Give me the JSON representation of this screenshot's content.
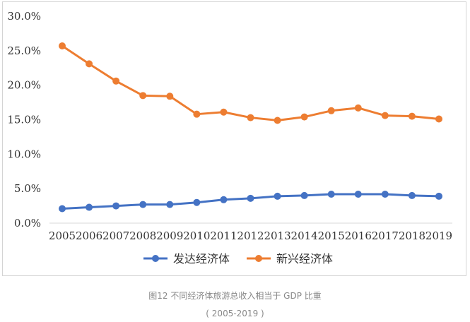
{
  "chart_data": {
    "type": "line",
    "categories": [
      "2005",
      "2006",
      "2007",
      "2008",
      "2009",
      "2010",
      "2011",
      "2012",
      "2013",
      "2014",
      "2015",
      "2016",
      "2017",
      "2018",
      "2019"
    ],
    "series": [
      {
        "name": "发达经济体",
        "color": "#4472c4",
        "values": [
          2.1,
          2.3,
          2.5,
          2.7,
          2.7,
          3.0,
          3.4,
          3.6,
          3.9,
          4.0,
          4.2,
          4.2,
          4.2,
          4.0,
          3.9
        ]
      },
      {
        "name": "新兴经济体",
        "color": "#ed7d31",
        "values": [
          25.7,
          23.1,
          20.6,
          18.5,
          18.4,
          15.8,
          16.1,
          15.3,
          14.9,
          15.4,
          16.3,
          16.7,
          15.6,
          15.5,
          15.1
        ]
      }
    ],
    "y_ticks": [
      "0.0%",
      "5.0%",
      "10.0%",
      "15.0%",
      "20.0%",
      "25.0%",
      "30.0%"
    ],
    "ylim": [
      0,
      30
    ],
    "grid": false,
    "legend_position": "bottom"
  },
  "caption": {
    "title": "图12 不同经济体旅游总收入相当于 GDP 比重",
    "subtitle": "( 2005-2019 )"
  }
}
